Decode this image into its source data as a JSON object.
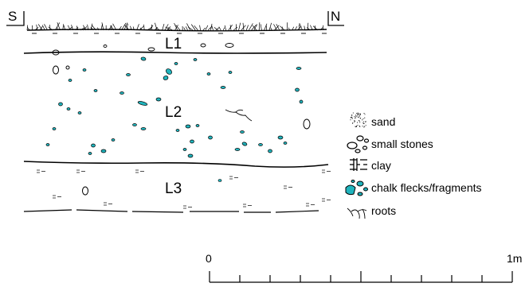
{
  "section": {
    "orientation": {
      "left": "S",
      "right": "N"
    },
    "layers": [
      {
        "id": "L1",
        "label": "L1"
      },
      {
        "id": "L2",
        "label": "L2"
      },
      {
        "id": "L3",
        "label": "L3"
      }
    ]
  },
  "legend": {
    "items": [
      {
        "key": "sand",
        "label": "sand"
      },
      {
        "key": "small-stones",
        "label": "small stones"
      },
      {
        "key": "clay",
        "label": "clay"
      },
      {
        "key": "chalk",
        "label": "chalk flecks/fragments"
      },
      {
        "key": "roots",
        "label": "roots"
      }
    ]
  },
  "scale_bar": {
    "start_label": "0",
    "end_label": "1m",
    "divisions": 10
  },
  "colors": {
    "chalk_fill": "#20b4bd",
    "outline": "#000000"
  }
}
